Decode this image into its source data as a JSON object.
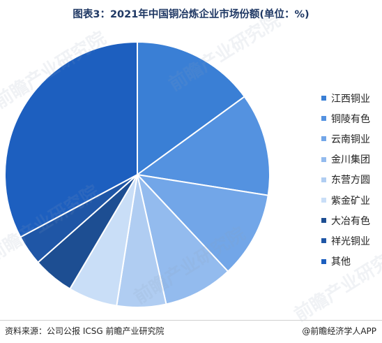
{
  "title": "图表3：2021年中国铜冶炼企业市场份额(单位：%)",
  "watermark_text": "前瞻产业研究院",
  "footer": {
    "source": "资料来源：公司公报 ICSG 前瞻产业研究院",
    "brand": "@前瞻经济学人APP"
  },
  "chart_data": {
    "type": "pie",
    "title": "图表3：2021年中国铜冶炼企业市场份额(单位：%)",
    "start": "12 o'clock, clockwise",
    "legend_position": "right",
    "slices": [
      {
        "label": "江西铜业",
        "value": 15.0,
        "color": "#3a7fd5"
      },
      {
        "label": "铜陵有色",
        "value": 12.5,
        "color": "#5492e0"
      },
      {
        "label": "云南铜业",
        "value": 10.5,
        "color": "#72a6e8"
      },
      {
        "label": "金川集团",
        "value": 8.5,
        "color": "#93bbee"
      },
      {
        "label": "东营方圆",
        "value": 6.0,
        "color": "#b0cdf2"
      },
      {
        "label": "紫金矿业",
        "value": 6.0,
        "color": "#c9def7"
      },
      {
        "label": "大冶有色",
        "value": 5.0,
        "color": "#1d4e92"
      },
      {
        "label": "祥光铜业",
        "value": 3.7,
        "color": "#1f56a6"
      },
      {
        "label": "其他",
        "value": 32.8,
        "color": "#1d5fbf"
      }
    ]
  }
}
